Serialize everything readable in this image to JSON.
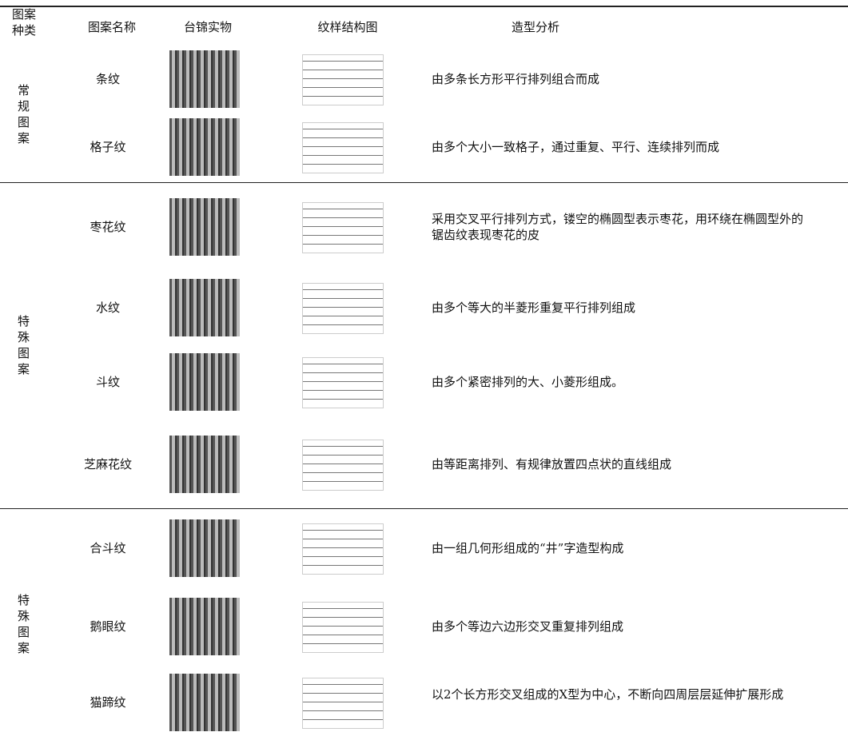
{
  "header": {
    "columns": [
      "图案种类",
      "图案名称",
      "台锦实物",
      "纹样结构图",
      "造型分析"
    ]
  },
  "groups": [
    {
      "kind": "常规图案",
      "rows": [
        {
          "name": "条纹",
          "analysis": "由多条长方形平行排列组合而成"
        },
        {
          "name": "格子纹",
          "analysis": "由多个大小一致格子，通过重复、平行、连续排列而成"
        }
      ]
    },
    {
      "kind": "特殊图案",
      "rows": [
        {
          "name": "枣花纹",
          "analysis": "采用交叉平行排列方式，镂空的椭圆型表示枣花，用环绕在椭圆型外的锯齿纹表现枣花的皮"
        },
        {
          "name": "水纹",
          "analysis": "由多个等大的半菱形重复平行排列组成"
        },
        {
          "name": "斗纹",
          "analysis": "由多个紧密排列的大、小菱形组成。"
        },
        {
          "name": "芝麻花纹",
          "analysis": "由等距离排列、有规律放置四点状的直线组成"
        }
      ]
    },
    {
      "kind": "特殊图案",
      "rows": [
        {
          "name": "合斗纹",
          "analysis": "由一组几何形组成的“井”字造型构成"
        },
        {
          "name": "鹅眼纹",
          "analysis": "由多个等边六边形交叉重复排列组成"
        },
        {
          "name": "猫蹄纹",
          "analysis": "以2个长方形交叉组成的X型为中心，不断向四周层层延伸扩展形成"
        }
      ]
    }
  ]
}
